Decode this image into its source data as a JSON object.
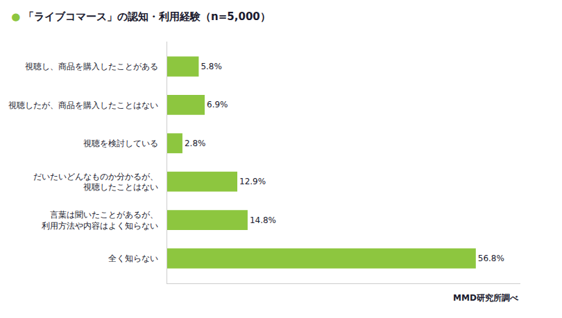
{
  "chart_data": {
    "type": "bar",
    "orientation": "horizontal",
    "title": "「ライブコマース」の認知・利用経験（n=5,000）",
    "categories": [
      "全く知らない",
      "言葉は聞いたことがあるが、\n利用方法や内容はよく知らない",
      "だいたいどんなものか分かるが、\n視聴したことはない",
      "視聴を検討している",
      "視聴したが、商品を購入したことはない",
      "視聴し、商品を購入したことがある"
    ],
    "values": [
      56.8,
      14.8,
      12.9,
      2.8,
      6.9,
      5.8
    ],
    "value_labels": [
      "56.8%",
      "14.8%",
      "12.9%",
      "2.8%",
      "6.9%",
      "5.8%"
    ],
    "data_labels": true,
    "color": "#8DC63F",
    "xlim": [
      0,
      65
    ],
    "tick_labels": "y",
    "grid": false,
    "annotations": [
      {
        "text": "●",
        "color": "#8DC63F"
      },
      {
        "text": "MMD研究所調べ"
      }
    ]
  }
}
